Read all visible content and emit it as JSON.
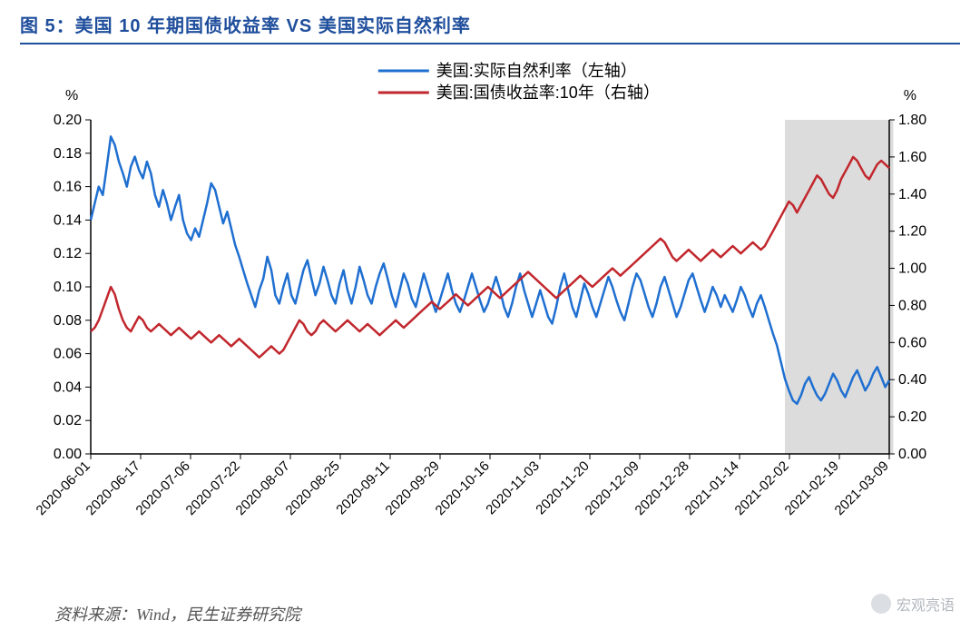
{
  "title": "图 5：美国 10 年期国债收益率 VS 美国实际自然利率",
  "source": "资料来源：Wind，民生证券研究院",
  "watermark": "宏观亮语",
  "chart": {
    "type": "line-dual-axis",
    "background_color": "#ffffff",
    "axis_color": "#000000",
    "tick_color": "#000000",
    "highlight_band": {
      "color": "#c0c0c0",
      "opacity": 0.55,
      "x_start_index": 173,
      "x_end_index": 200
    },
    "left_axis": {
      "unit_label": "%",
      "min": 0.0,
      "max": 0.2,
      "tick_step": 0.02,
      "decimals": 2
    },
    "right_axis": {
      "unit_label": "%",
      "min": 0.0,
      "max": 1.8,
      "tick_step": 0.2,
      "decimals": 2
    },
    "x_labels": [
      "2020-06-01",
      "2020-06-17",
      "2020-07-06",
      "2020-07-22",
      "2020-08-07",
      "2020-08-25",
      "2020-09-11",
      "2020-09-29",
      "2020-10-16",
      "2020-11-03",
      "2020-11-20",
      "2020-12-09",
      "2020-12-28",
      "2021-01-14",
      "2021-02-02",
      "2021-02-19",
      "2021-03-09"
    ],
    "x_label_rotation_deg": -45,
    "legend": {
      "position": "top-center",
      "items": [
        {
          "text": "美国:实际自然利率（左轴）",
          "color": "#1f6fd1",
          "line_width": 3
        },
        {
          "text": "美国:国债收益率:10年（右轴）",
          "color": "#c1272d",
          "line_width": 3
        }
      ]
    },
    "series": [
      {
        "name": "美国:实际自然利率（左轴）",
        "axis": "left",
        "color": "#1f6fd1",
        "line_width": 2.5,
        "data": [
          0.14,
          0.15,
          0.16,
          0.155,
          0.172,
          0.19,
          0.185,
          0.175,
          0.168,
          0.16,
          0.172,
          0.178,
          0.17,
          0.165,
          0.175,
          0.168,
          0.155,
          0.148,
          0.158,
          0.15,
          0.14,
          0.148,
          0.155,
          0.14,
          0.132,
          0.128,
          0.135,
          0.13,
          0.14,
          0.15,
          0.162,
          0.158,
          0.148,
          0.138,
          0.145,
          0.135,
          0.125,
          0.118,
          0.11,
          0.102,
          0.095,
          0.088,
          0.098,
          0.105,
          0.118,
          0.11,
          0.095,
          0.09,
          0.1,
          0.108,
          0.095,
          0.09,
          0.1,
          0.11,
          0.116,
          0.105,
          0.095,
          0.102,
          0.112,
          0.104,
          0.095,
          0.09,
          0.102,
          0.11,
          0.098,
          0.09,
          0.1,
          0.112,
          0.104,
          0.095,
          0.09,
          0.1,
          0.108,
          0.114,
          0.105,
          0.095,
          0.088,
          0.098,
          0.108,
          0.102,
          0.093,
          0.088,
          0.098,
          0.108,
          0.1,
          0.092,
          0.085,
          0.092,
          0.1,
          0.108,
          0.098,
          0.09,
          0.085,
          0.092,
          0.1,
          0.108,
          0.1,
          0.092,
          0.085,
          0.09,
          0.098,
          0.106,
          0.098,
          0.088,
          0.082,
          0.09,
          0.1,
          0.108,
          0.098,
          0.09,
          0.082,
          0.09,
          0.098,
          0.09,
          0.082,
          0.078,
          0.088,
          0.1,
          0.108,
          0.098,
          0.088,
          0.082,
          0.092,
          0.102,
          0.096,
          0.088,
          0.082,
          0.09,
          0.098,
          0.106,
          0.1,
          0.092,
          0.085,
          0.08,
          0.09,
          0.1,
          0.108,
          0.104,
          0.096,
          0.088,
          0.082,
          0.09,
          0.1,
          0.106,
          0.098,
          0.09,
          0.082,
          0.088,
          0.096,
          0.104,
          0.108,
          0.1,
          0.092,
          0.085,
          0.092,
          0.1,
          0.095,
          0.088,
          0.095,
          0.09,
          0.085,
          0.092,
          0.1,
          0.095,
          0.088,
          0.082,
          0.09,
          0.095,
          0.088,
          0.08,
          0.072,
          0.065,
          0.055,
          0.045,
          0.038,
          0.032,
          0.03,
          0.035,
          0.042,
          0.046,
          0.04,
          0.035,
          0.032,
          0.036,
          0.042,
          0.048,
          0.044,
          0.038,
          0.034,
          0.04,
          0.046,
          0.05,
          0.044,
          0.038,
          0.042,
          0.048,
          0.052,
          0.046,
          0.04,
          0.044
        ]
      },
      {
        "name": "美国:国债收益率:10年（右轴）",
        "axis": "right",
        "color": "#c1272d",
        "line_width": 2.5,
        "data": [
          0.66,
          0.68,
          0.72,
          0.78,
          0.84,
          0.9,
          0.86,
          0.78,
          0.72,
          0.68,
          0.66,
          0.7,
          0.74,
          0.72,
          0.68,
          0.66,
          0.68,
          0.7,
          0.68,
          0.66,
          0.64,
          0.66,
          0.68,
          0.66,
          0.64,
          0.62,
          0.64,
          0.66,
          0.64,
          0.62,
          0.6,
          0.62,
          0.64,
          0.62,
          0.6,
          0.58,
          0.6,
          0.62,
          0.6,
          0.58,
          0.56,
          0.54,
          0.52,
          0.54,
          0.56,
          0.58,
          0.56,
          0.54,
          0.56,
          0.6,
          0.64,
          0.68,
          0.72,
          0.7,
          0.66,
          0.64,
          0.66,
          0.7,
          0.72,
          0.7,
          0.68,
          0.66,
          0.68,
          0.7,
          0.72,
          0.7,
          0.68,
          0.66,
          0.68,
          0.7,
          0.68,
          0.66,
          0.64,
          0.66,
          0.68,
          0.7,
          0.72,
          0.7,
          0.68,
          0.7,
          0.72,
          0.74,
          0.76,
          0.78,
          0.8,
          0.82,
          0.8,
          0.78,
          0.8,
          0.82,
          0.84,
          0.86,
          0.84,
          0.82,
          0.8,
          0.82,
          0.84,
          0.86,
          0.88,
          0.9,
          0.88,
          0.86,
          0.84,
          0.86,
          0.88,
          0.9,
          0.92,
          0.94,
          0.96,
          0.98,
          0.96,
          0.94,
          0.92,
          0.9,
          0.88,
          0.86,
          0.84,
          0.86,
          0.88,
          0.9,
          0.92,
          0.94,
          0.96,
          0.94,
          0.92,
          0.9,
          0.92,
          0.94,
          0.96,
          0.98,
          1.0,
          0.98,
          0.96,
          0.98,
          1.0,
          1.02,
          1.04,
          1.06,
          1.08,
          1.1,
          1.12,
          1.14,
          1.16,
          1.14,
          1.1,
          1.06,
          1.04,
          1.06,
          1.08,
          1.1,
          1.08,
          1.06,
          1.04,
          1.06,
          1.08,
          1.1,
          1.08,
          1.06,
          1.08,
          1.1,
          1.12,
          1.1,
          1.08,
          1.1,
          1.12,
          1.14,
          1.12,
          1.1,
          1.12,
          1.16,
          1.2,
          1.24,
          1.28,
          1.32,
          1.36,
          1.34,
          1.3,
          1.34,
          1.38,
          1.42,
          1.46,
          1.5,
          1.48,
          1.44,
          1.4,
          1.38,
          1.42,
          1.48,
          1.52,
          1.56,
          1.6,
          1.58,
          1.54,
          1.5,
          1.48,
          1.52,
          1.56,
          1.58,
          1.56,
          1.54
        ]
      }
    ]
  }
}
